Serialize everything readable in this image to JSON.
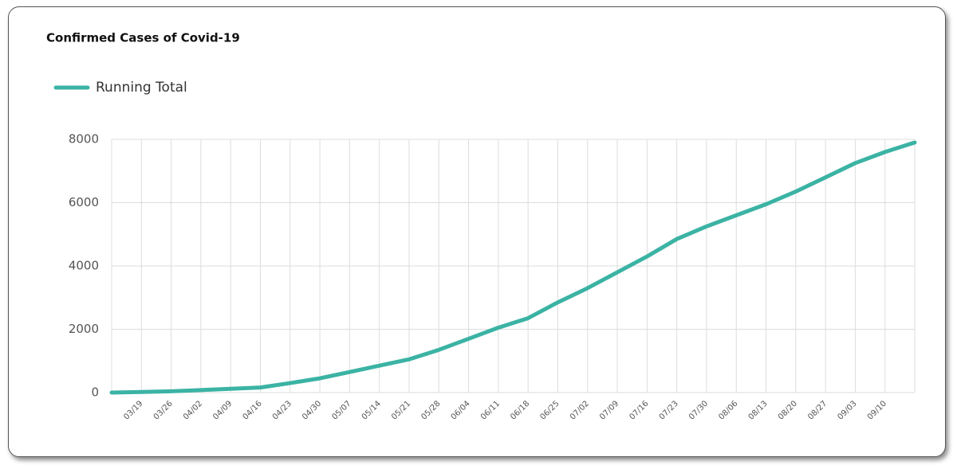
{
  "chart_data": {
    "type": "line",
    "title": "Confirmed Cases of Covid-19",
    "categories": [
      null,
      "03/19",
      "03/26",
      "04/02",
      "04/09",
      "04/16",
      "04/23",
      "04/30",
      "05/07",
      "05/14",
      "05/21",
      "05/28",
      "06/04",
      "06/11",
      "06/18",
      "06/25",
      "07/02",
      "07/09",
      "07/16",
      "07/23",
      "07/30",
      "08/06",
      "08/13",
      "08/20",
      "08/27",
      "09/03",
      "09/10",
      null
    ],
    "series": [
      {
        "name": "Running Total",
        "color": "#3bb3a4",
        "values": [
          0,
          20,
          40,
          80,
          120,
          160,
          300,
          450,
          650,
          850,
          1050,
          1350,
          1700,
          2050,
          2350,
          2850,
          3300,
          3800,
          4300,
          4850,
          5250,
          5600,
          5950,
          6350,
          6800,
          7250,
          7600,
          7900
        ]
      }
    ],
    "ylim": [
      0,
      8000
    ],
    "yticks": [
      0,
      2000,
      4000,
      6000,
      8000
    ],
    "grid": true,
    "legend": "top-left"
  }
}
